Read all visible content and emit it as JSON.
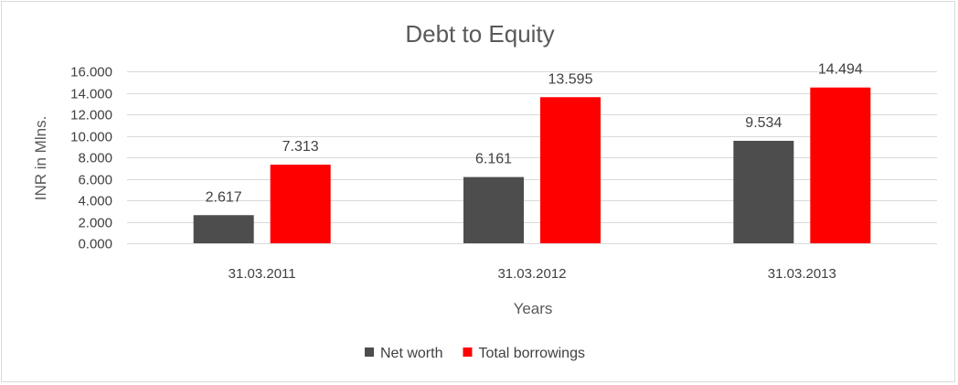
{
  "chart_data": {
    "type": "bar",
    "title": "Debt to Equity",
    "xlabel": "Years",
    "ylabel": "INR in Mlns.",
    "categories": [
      "31.03.2011",
      "31.03.2012",
      "31.03.2013"
    ],
    "series": [
      {
        "name": "Net worth",
        "color": "#4d4d4d",
        "values": [
          2.617,
          6.161,
          9.534
        ],
        "labels": [
          "2.617",
          "6.161",
          "9.534"
        ]
      },
      {
        "name": "Total borrowings",
        "color": "#ff0000",
        "values": [
          7.313,
          13.595,
          14.494
        ],
        "labels": [
          "7.313",
          "13.595",
          "14.494"
        ]
      }
    ],
    "ylim": [
      0,
      16
    ],
    "yticks": [
      0,
      2,
      4,
      6,
      8,
      10,
      12,
      14,
      16
    ],
    "ytick_labels": [
      "0.000",
      "2.000",
      "4.000",
      "6.000",
      "8.000",
      "10.000",
      "12.000",
      "14.000",
      "16.000"
    ],
    "grid": true,
    "legend": "bottom",
    "gridline_color": "#d9d9d9"
  }
}
